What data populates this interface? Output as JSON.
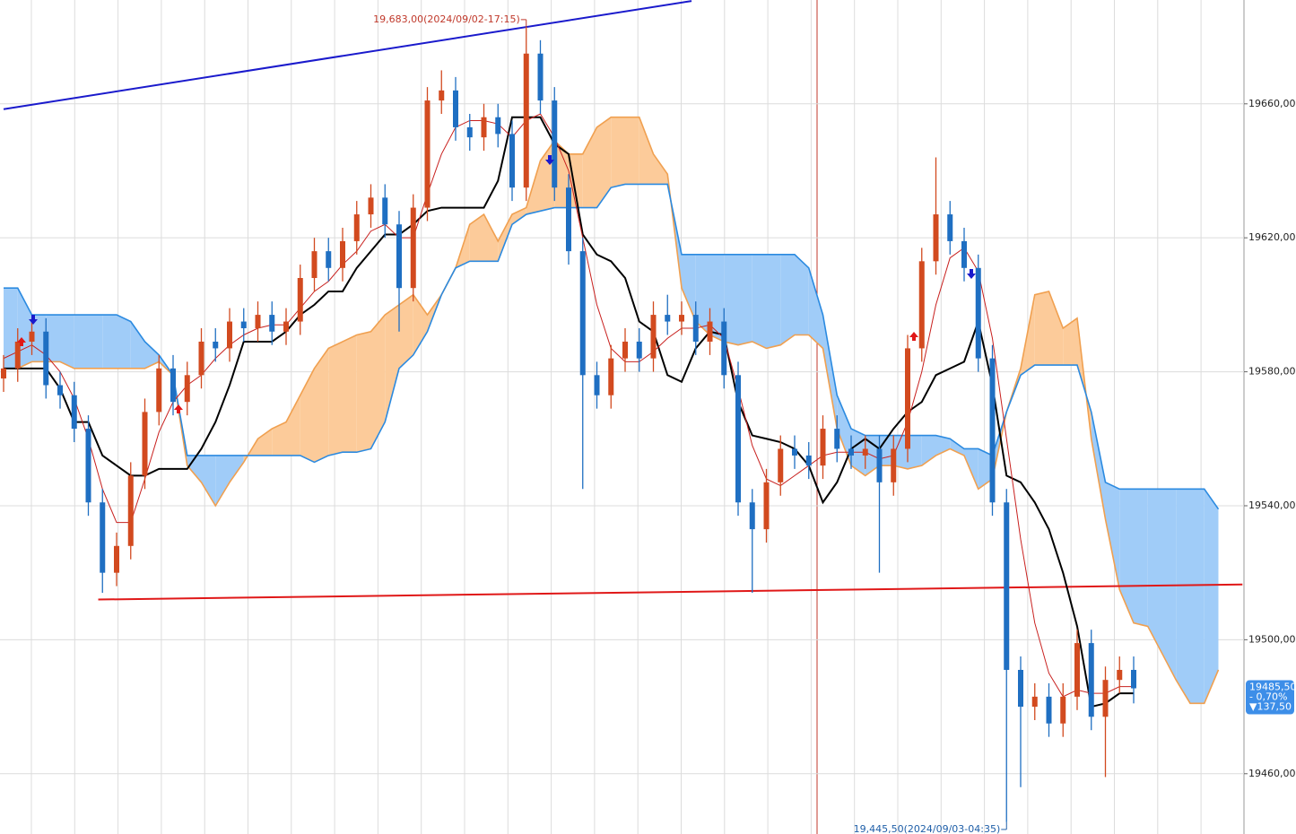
{
  "chart_data": {
    "type": "candlestick",
    "ylim": [
      19442,
      19691
    ],
    "yticks": [
      {
        "value": 19460,
        "label": "19460,00"
      },
      {
        "value": 19500,
        "label": "19500,00"
      },
      {
        "value": 19540,
        "label": "19540,00"
      },
      {
        "value": 19580,
        "label": "19580,00"
      },
      {
        "value": 19620,
        "label": "19620,00"
      },
      {
        "value": 19660,
        "label": "19660,00"
      }
    ],
    "grid": true,
    "up_color": "#d24a1f",
    "down_color": "#1f6fc2",
    "candles": {
      "open": [
        19578,
        19581,
        19589,
        19592,
        19576,
        19573,
        19563,
        19541,
        19520,
        19528,
        19549,
        19568,
        19581,
        19571,
        19579,
        19589,
        19587,
        19595,
        19593,
        19597,
        19592,
        19595,
        19608,
        19616,
        19611,
        19619,
        19627,
        19632,
        19624,
        19605,
        19629,
        19661,
        19664,
        19653,
        19650,
        19656,
        19651,
        19635,
        19675,
        19661,
        19635,
        19616,
        19579,
        19573,
        19584,
        19589,
        19584,
        19597,
        19595,
        19597,
        19589,
        19595,
        19579,
        19541,
        19533,
        19547,
        19557,
        19555,
        19552,
        19563,
        19557,
        19555,
        19557,
        19547,
        19557,
        19587,
        19613,
        19627,
        19619,
        19611,
        19584,
        19541,
        19491,
        19480,
        19483,
        19475,
        19483,
        19499,
        19477,
        19488,
        19491
      ],
      "high": [
        19585,
        19593,
        19596,
        19596,
        19580,
        19577,
        19567,
        19545,
        19532,
        19553,
        19572,
        19585,
        19585,
        19583,
        19593,
        19593,
        19599,
        19599,
        19601,
        19601,
        19599,
        19612,
        19620,
        19620,
        19623,
        19631,
        19636,
        19636,
        19628,
        19633,
        19665,
        19670,
        19668,
        19657,
        19660,
        19660,
        19655,
        19683,
        19679,
        19665,
        19639,
        19620,
        19583,
        19588,
        19593,
        19593,
        19601,
        19603,
        19601,
        19601,
        19599,
        19599,
        19583,
        19545,
        19551,
        19561,
        19561,
        19559,
        19567,
        19567,
        19561,
        19561,
        19561,
        19561,
        19591,
        19617,
        19644,
        19631,
        19623,
        19615,
        19588,
        19545,
        19495,
        19487,
        19487,
        19487,
        19503,
        19503,
        19492,
        19495,
        19495
      ],
      "low": [
        19574,
        19577,
        19585,
        19572,
        19569,
        19559,
        19537,
        19514,
        19516,
        19524,
        19545,
        19564,
        19567,
        19567,
        19575,
        19583,
        19583,
        19589,
        19589,
        19588,
        19588,
        19591,
        19604,
        19607,
        19607,
        19615,
        19623,
        19620,
        19592,
        19601,
        19625,
        19657,
        19649,
        19646,
        19646,
        19647,
        19631,
        19631,
        19657,
        19631,
        19612,
        19545,
        19569,
        19569,
        19580,
        19580,
        19580,
        19591,
        19591,
        19585,
        19585,
        19575,
        19537,
        19514,
        19529,
        19543,
        19551,
        19548,
        19548,
        19553,
        19551,
        19551,
        19520,
        19543,
        19553,
        19583,
        19609,
        19615,
        19607,
        19580,
        19537,
        19445.5,
        19456,
        19476,
        19471,
        19471,
        19479,
        19473,
        19459,
        19484,
        19481
      ],
      "close": [
        19581,
        19589,
        19592,
        19576,
        19573,
        19563,
        19541,
        19520,
        19528,
        19549,
        19568,
        19581,
        19571,
        19579,
        19589,
        19587,
        19595,
        19593,
        19597,
        19592,
        19595,
        19608,
        19616,
        19611,
        19619,
        19627,
        19632,
        19624,
        19605,
        19629,
        19661,
        19664,
        19653,
        19650,
        19656,
        19651,
        19635,
        19675,
        19661,
        19635,
        19616,
        19579,
        19573,
        19584,
        19589,
        19584,
        19597,
        19595,
        19597,
        19589,
        19595,
        19579,
        19541,
        19533,
        19547,
        19557,
        19555,
        19552,
        19563,
        19557,
        19555,
        19557,
        19547,
        19557,
        19587,
        19613,
        19627,
        19619,
        19611,
        19584,
        19541,
        19491,
        19480,
        19483,
        19475,
        19483,
        19499,
        19477,
        19488,
        19491,
        19485.5
      ]
    },
    "overlays": {
      "base_line": {
        "color": "#000000",
        "values": [
          19581,
          19581,
          19581,
          19581,
          19575,
          19565,
          19565,
          19555,
          19552,
          19549,
          19549,
          19551,
          19551,
          19551,
          19557,
          19565,
          19576,
          19589,
          19589,
          19589,
          19592,
          19597,
          19600,
          19604,
          19604,
          19611,
          19616,
          19621,
          19621,
          19624,
          19628,
          19629,
          19629,
          19629,
          19629,
          19637,
          19656,
          19656,
          19656,
          19648,
          19645,
          19621,
          19615,
          19613,
          19608,
          19595,
          19592,
          19579,
          19577,
          19587,
          19592,
          19591,
          19571,
          19561,
          19560,
          19559,
          19557,
          19552,
          19541,
          19547,
          19557,
          19560,
          19557,
          19563,
          19568,
          19571,
          19579,
          19581,
          19583,
          19595,
          19576,
          19549,
          19547,
          19541,
          19533,
          19520,
          19504,
          19480,
          19481,
          19484,
          19484
        ]
      },
      "conversion_line": {
        "color": "#c8201e",
        "values": [
          19584,
          19586,
          19588,
          19585,
          19580,
          19572,
          19560,
          19545,
          19535,
          19535,
          19548,
          19562,
          19571,
          19576,
          19579,
          19584,
          19588,
          19591,
          19593,
          19594,
          19594,
          19599,
          19604,
          19607,
          19612,
          19616,
          19622,
          19624,
          19620,
          19620,
          19633,
          19645,
          19653,
          19655,
          19655,
          19654,
          19650,
          19655,
          19657,
          19650,
          19640,
          19620,
          19600,
          19587,
          19583,
          19583,
          19586,
          19590,
          19593,
          19593,
          19594,
          19590,
          19575,
          19558,
          19548,
          19546,
          19549,
          19552,
          19555,
          19556,
          19556,
          19556,
          19554,
          19555,
          19565,
          19580,
          19600,
          19614,
          19617,
          19610,
          19590,
          19560,
          19530,
          19505,
          19490,
          19483,
          19485,
          19484,
          19484,
          19486,
          19486
        ]
      }
    },
    "cloud": {
      "span_a": {
        "color": "#f0a050",
        "values": [
          19581,
          19581,
          19583,
          19583,
          19583,
          19581,
          19581,
          19581,
          19581,
          19581,
          19581,
          19583,
          19579,
          19552,
          19547,
          19540,
          19547,
          19553,
          19560,
          19563,
          19565,
          19573,
          19581,
          19587,
          19589,
          19591,
          19592,
          19597,
          19600,
          19603,
          19597,
          19603,
          19611,
          19624,
          19627,
          19619,
          19627,
          19629,
          19643,
          19649,
          19645,
          19645,
          19653,
          19656,
          19656,
          19656,
          19645,
          19639,
          19605,
          19595,
          19591,
          19589,
          19588,
          19589,
          19587,
          19588,
          19591,
          19591,
          19587,
          19563,
          19552,
          19549,
          19552,
          19552,
          19551,
          19552,
          19555,
          19557,
          19555,
          19545,
          19548,
          19568,
          19581,
          19603,
          19604,
          19593,
          19596,
          19560,
          19536,
          19515,
          19505,
          19504,
          19496,
          19488,
          19481,
          19481,
          19491
        ]
      },
      "span_b": {
        "color": "#2b8ae0",
        "values": [
          19605,
          19605,
          19597,
          19597,
          19597,
          19597,
          19597,
          19597,
          19597,
          19595,
          19589,
          19585,
          19579,
          19555,
          19555,
          19555,
          19555,
          19555,
          19555,
          19555,
          19555,
          19555,
          19553,
          19555,
          19556,
          19556,
          19557,
          19565,
          19581,
          19585,
          19592,
          19603,
          19611,
          19613,
          19613,
          19613,
          19624,
          19627,
          19628,
          19629,
          19629,
          19629,
          19629,
          19635,
          19636,
          19636,
          19636,
          19636,
          19615,
          19615,
          19615,
          19615,
          19615,
          19615,
          19615,
          19615,
          19615,
          19611,
          19597,
          19573,
          19563,
          19561,
          19561,
          19561,
          19561,
          19561,
          19561,
          19560,
          19557,
          19557,
          19555,
          19568,
          19579,
          19582,
          19582,
          19582,
          19582,
          19568,
          19547,
          19545,
          19545,
          19545,
          19545,
          19545,
          19545,
          19545,
          19539
        ]
      },
      "fill_b_above": "#a0ccf8",
      "fill_a_above": "#fccb9a"
    },
    "trendlines": [
      {
        "color": "#1a1acc",
        "x": [
          0,
          48.7
        ],
        "values": [
          19658.4,
          19690.7
        ]
      },
      {
        "color": "#e01818",
        "x": [
          6.7,
          87.7
        ],
        "values": [
          19512,
          19516.5
        ]
      }
    ],
    "annotations": [
      {
        "label": "19,683,00(2024/09/02-17:15)",
        "index": 37,
        "value": 19683,
        "color": "#c0392b"
      },
      {
        "label": "19,445,50(2024/09/03-04:35)",
        "index": 71,
        "value": 19445.5,
        "color": "#1f5fa8"
      }
    ],
    "last_price": {
      "value": 19485.5,
      "label": "19485,50",
      "change_pct": "- 0,70%",
      "change": "▼137,50",
      "color": "#3d8ee8"
    }
  }
}
